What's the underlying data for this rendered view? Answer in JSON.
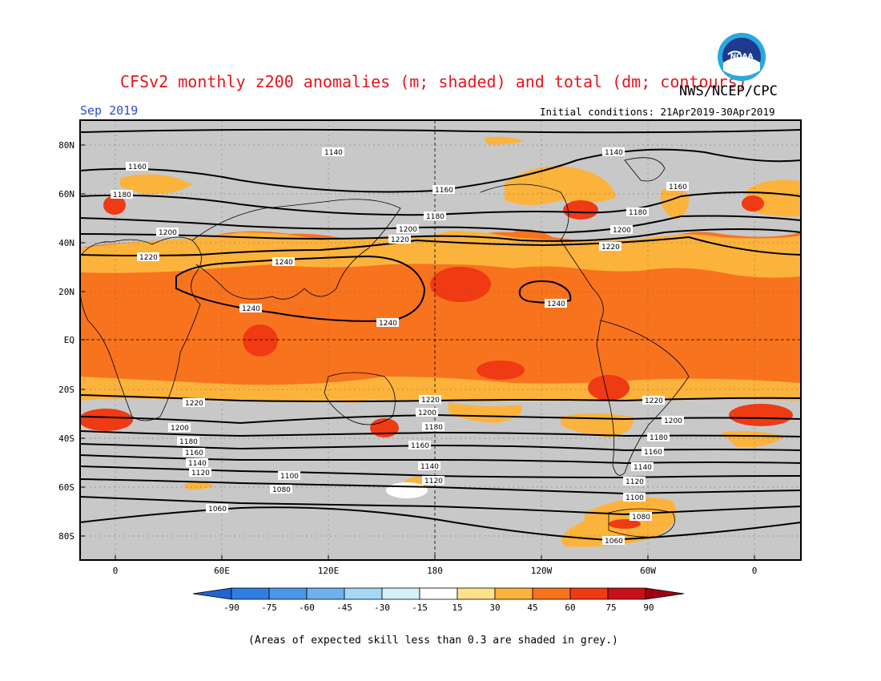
{
  "header": {
    "title": "CFSv2 monthly z200 anomalies (m; shaded) and total (dm; contours)",
    "agency": "NWS/NCEP/CPC",
    "valid_month": "Sep 2019",
    "initial_conditions": "Initial conditions: 21Apr2019-30Apr2019",
    "logo_text": "NOAA"
  },
  "map": {
    "lat_labels": [
      "80N",
      "60N",
      "40N",
      "20N",
      "EQ",
      "20S",
      "40S",
      "60S",
      "80S"
    ],
    "lon_labels": [
      "0",
      "60E",
      "120E",
      "180",
      "120W",
      "60W",
      "0"
    ],
    "contour_labels": [
      "1140",
      "1160",
      "1180",
      "1200",
      "1220",
      "1240",
      "1220",
      "1200",
      "1180",
      "1160",
      "1140",
      "1120",
      "1100",
      "1080",
      "1060"
    ],
    "skill_mask_color": "#c8c8c8"
  },
  "colorbar": {
    "tick_labels": [
      "-90",
      "-75",
      "-60",
      "-45",
      "-30",
      "-15",
      "15",
      "30",
      "45",
      "60",
      "75",
      "90"
    ],
    "colors": [
      "#1e64d2",
      "#2e7fe0",
      "#4a96e8",
      "#6eb1ef",
      "#a6d8f5",
      "#d4f0f8",
      "#ffffff",
      "#fde28a",
      "#fcb33c",
      "#f7731c",
      "#f03a14",
      "#c8101a",
      "#a00010"
    ]
  },
  "footnote": "(Areas of expected skill less than 0.3 are shaded in grey.)"
}
